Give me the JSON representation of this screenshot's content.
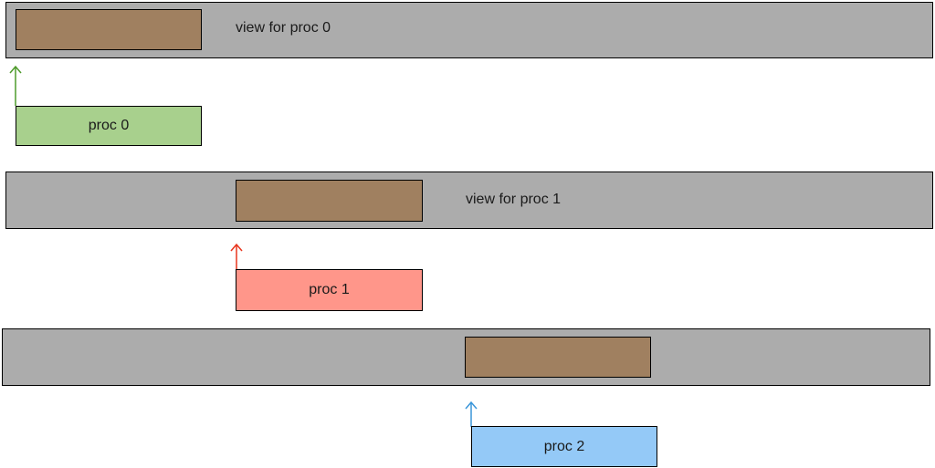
{
  "colors": {
    "view_bar": "#acacac",
    "view_block": "#a08060",
    "proc0": "#a8d08d",
    "proc1": "#ff968a",
    "proc2": "#94c9f7",
    "arrow0": "#4d9a2a",
    "arrow1": "#e8341c",
    "arrow2": "#3a96d9"
  },
  "views": [
    {
      "label": "view for proc 0"
    },
    {
      "label": "view for proc 1"
    },
    {
      "label": ""
    }
  ],
  "procs": [
    {
      "label": "proc 0",
      "color": "#a8d08d",
      "arrow_color": "#4d9a2a"
    },
    {
      "label": "proc 1",
      "color": "#ff968a",
      "arrow_color": "#e8341c"
    },
    {
      "label": "proc 2",
      "color": "#94c9f7",
      "arrow_color": "#3a96d9"
    }
  ]
}
